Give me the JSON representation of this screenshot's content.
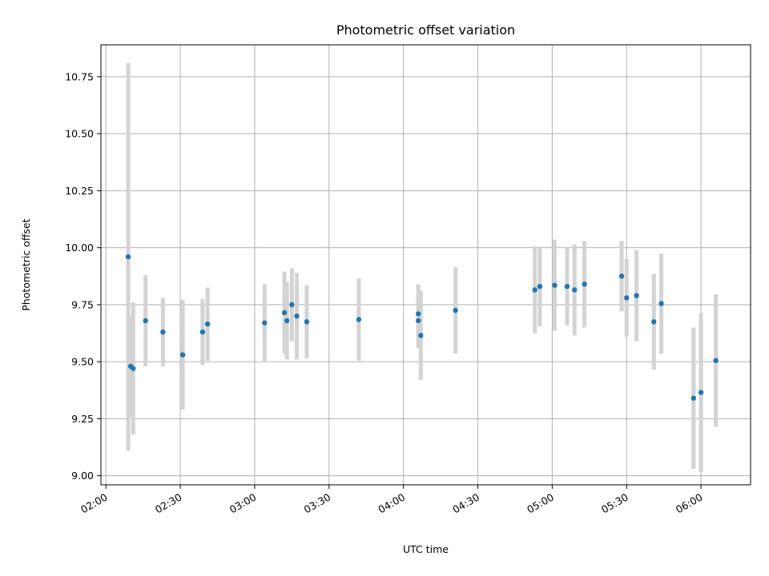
{
  "chart_data": {
    "type": "scatter",
    "title": "Photometric offset variation",
    "xlabel": "UTC time",
    "ylabel": "Photometric offset",
    "x_unit": "UTC time (HH:MM)",
    "xlim": [
      "01:58",
      "06:20"
    ],
    "ylim": [
      8.96,
      10.89
    ],
    "xticks": [
      "02:00",
      "02:30",
      "03:00",
      "03:30",
      "04:00",
      "04:30",
      "05:00",
      "05:30",
      "06:00"
    ],
    "yticks": [
      9.0,
      9.25,
      9.5,
      9.75,
      10.0,
      10.25,
      10.5,
      10.75
    ],
    "ytick_labels": [
      "9.00",
      "9.25",
      "9.50",
      "9.75",
      "10.00",
      "10.25",
      "10.50",
      "10.75"
    ],
    "grid": true,
    "colors": {
      "point": "#1f77b4",
      "errorbar": "#d3d3d3",
      "grid": "#b0b0b0"
    },
    "series": [
      {
        "points": [
          {
            "x": "02:09",
            "y": 9.96,
            "err": 0.85
          },
          {
            "x": "02:10",
            "y": 9.48,
            "err": 0.22
          },
          {
            "x": "02:11",
            "y": 9.47,
            "err": 0.29
          },
          {
            "x": "02:16",
            "y": 9.68,
            "err": 0.2
          },
          {
            "x": "02:23",
            "y": 9.63,
            "err": 0.15
          },
          {
            "x": "02:31",
            "y": 9.53,
            "err": 0.24
          },
          {
            "x": "02:39",
            "y": 9.63,
            "err": 0.145
          },
          {
            "x": "02:41",
            "y": 9.665,
            "err": 0.16
          },
          {
            "x": "03:04",
            "y": 9.67,
            "err": 0.17
          },
          {
            "x": "03:12",
            "y": 9.715,
            "err": 0.18
          },
          {
            "x": "03:13",
            "y": 9.68,
            "err": 0.17
          },
          {
            "x": "03:15",
            "y": 9.75,
            "err": 0.16
          },
          {
            "x": "03:17",
            "y": 9.7,
            "err": 0.19
          },
          {
            "x": "03:21",
            "y": 9.675,
            "err": 0.16
          },
          {
            "x": "03:42",
            "y": 9.685,
            "err": 0.18
          },
          {
            "x": "04:06",
            "y": 9.68,
            "err": 0.12
          },
          {
            "x": "04:06",
            "y": 9.71,
            "err": 0.13
          },
          {
            "x": "04:07",
            "y": 9.615,
            "err": 0.195
          },
          {
            "x": "04:21",
            "y": 9.725,
            "err": 0.19
          },
          {
            "x": "04:53",
            "y": 9.815,
            "err": 0.19
          },
          {
            "x": "04:55",
            "y": 9.83,
            "err": 0.175
          },
          {
            "x": "05:01",
            "y": 9.835,
            "err": 0.2
          },
          {
            "x": "05:06",
            "y": 9.83,
            "err": 0.17
          },
          {
            "x": "05:09",
            "y": 9.815,
            "err": 0.2
          },
          {
            "x": "05:13",
            "y": 9.84,
            "err": 0.19
          },
          {
            "x": "05:28",
            "y": 9.875,
            "err": 0.155
          },
          {
            "x": "05:30",
            "y": 9.78,
            "err": 0.17
          },
          {
            "x": "05:34",
            "y": 9.79,
            "err": 0.2
          },
          {
            "x": "05:41",
            "y": 9.675,
            "err": 0.21
          },
          {
            "x": "05:44",
            "y": 9.755,
            "err": 0.22
          },
          {
            "x": "05:57",
            "y": 9.34,
            "err": 0.31
          },
          {
            "x": "06:00",
            "y": 9.365,
            "err": 0.35
          },
          {
            "x": "06:06",
            "y": 9.505,
            "err": 0.29
          }
        ]
      }
    ]
  }
}
